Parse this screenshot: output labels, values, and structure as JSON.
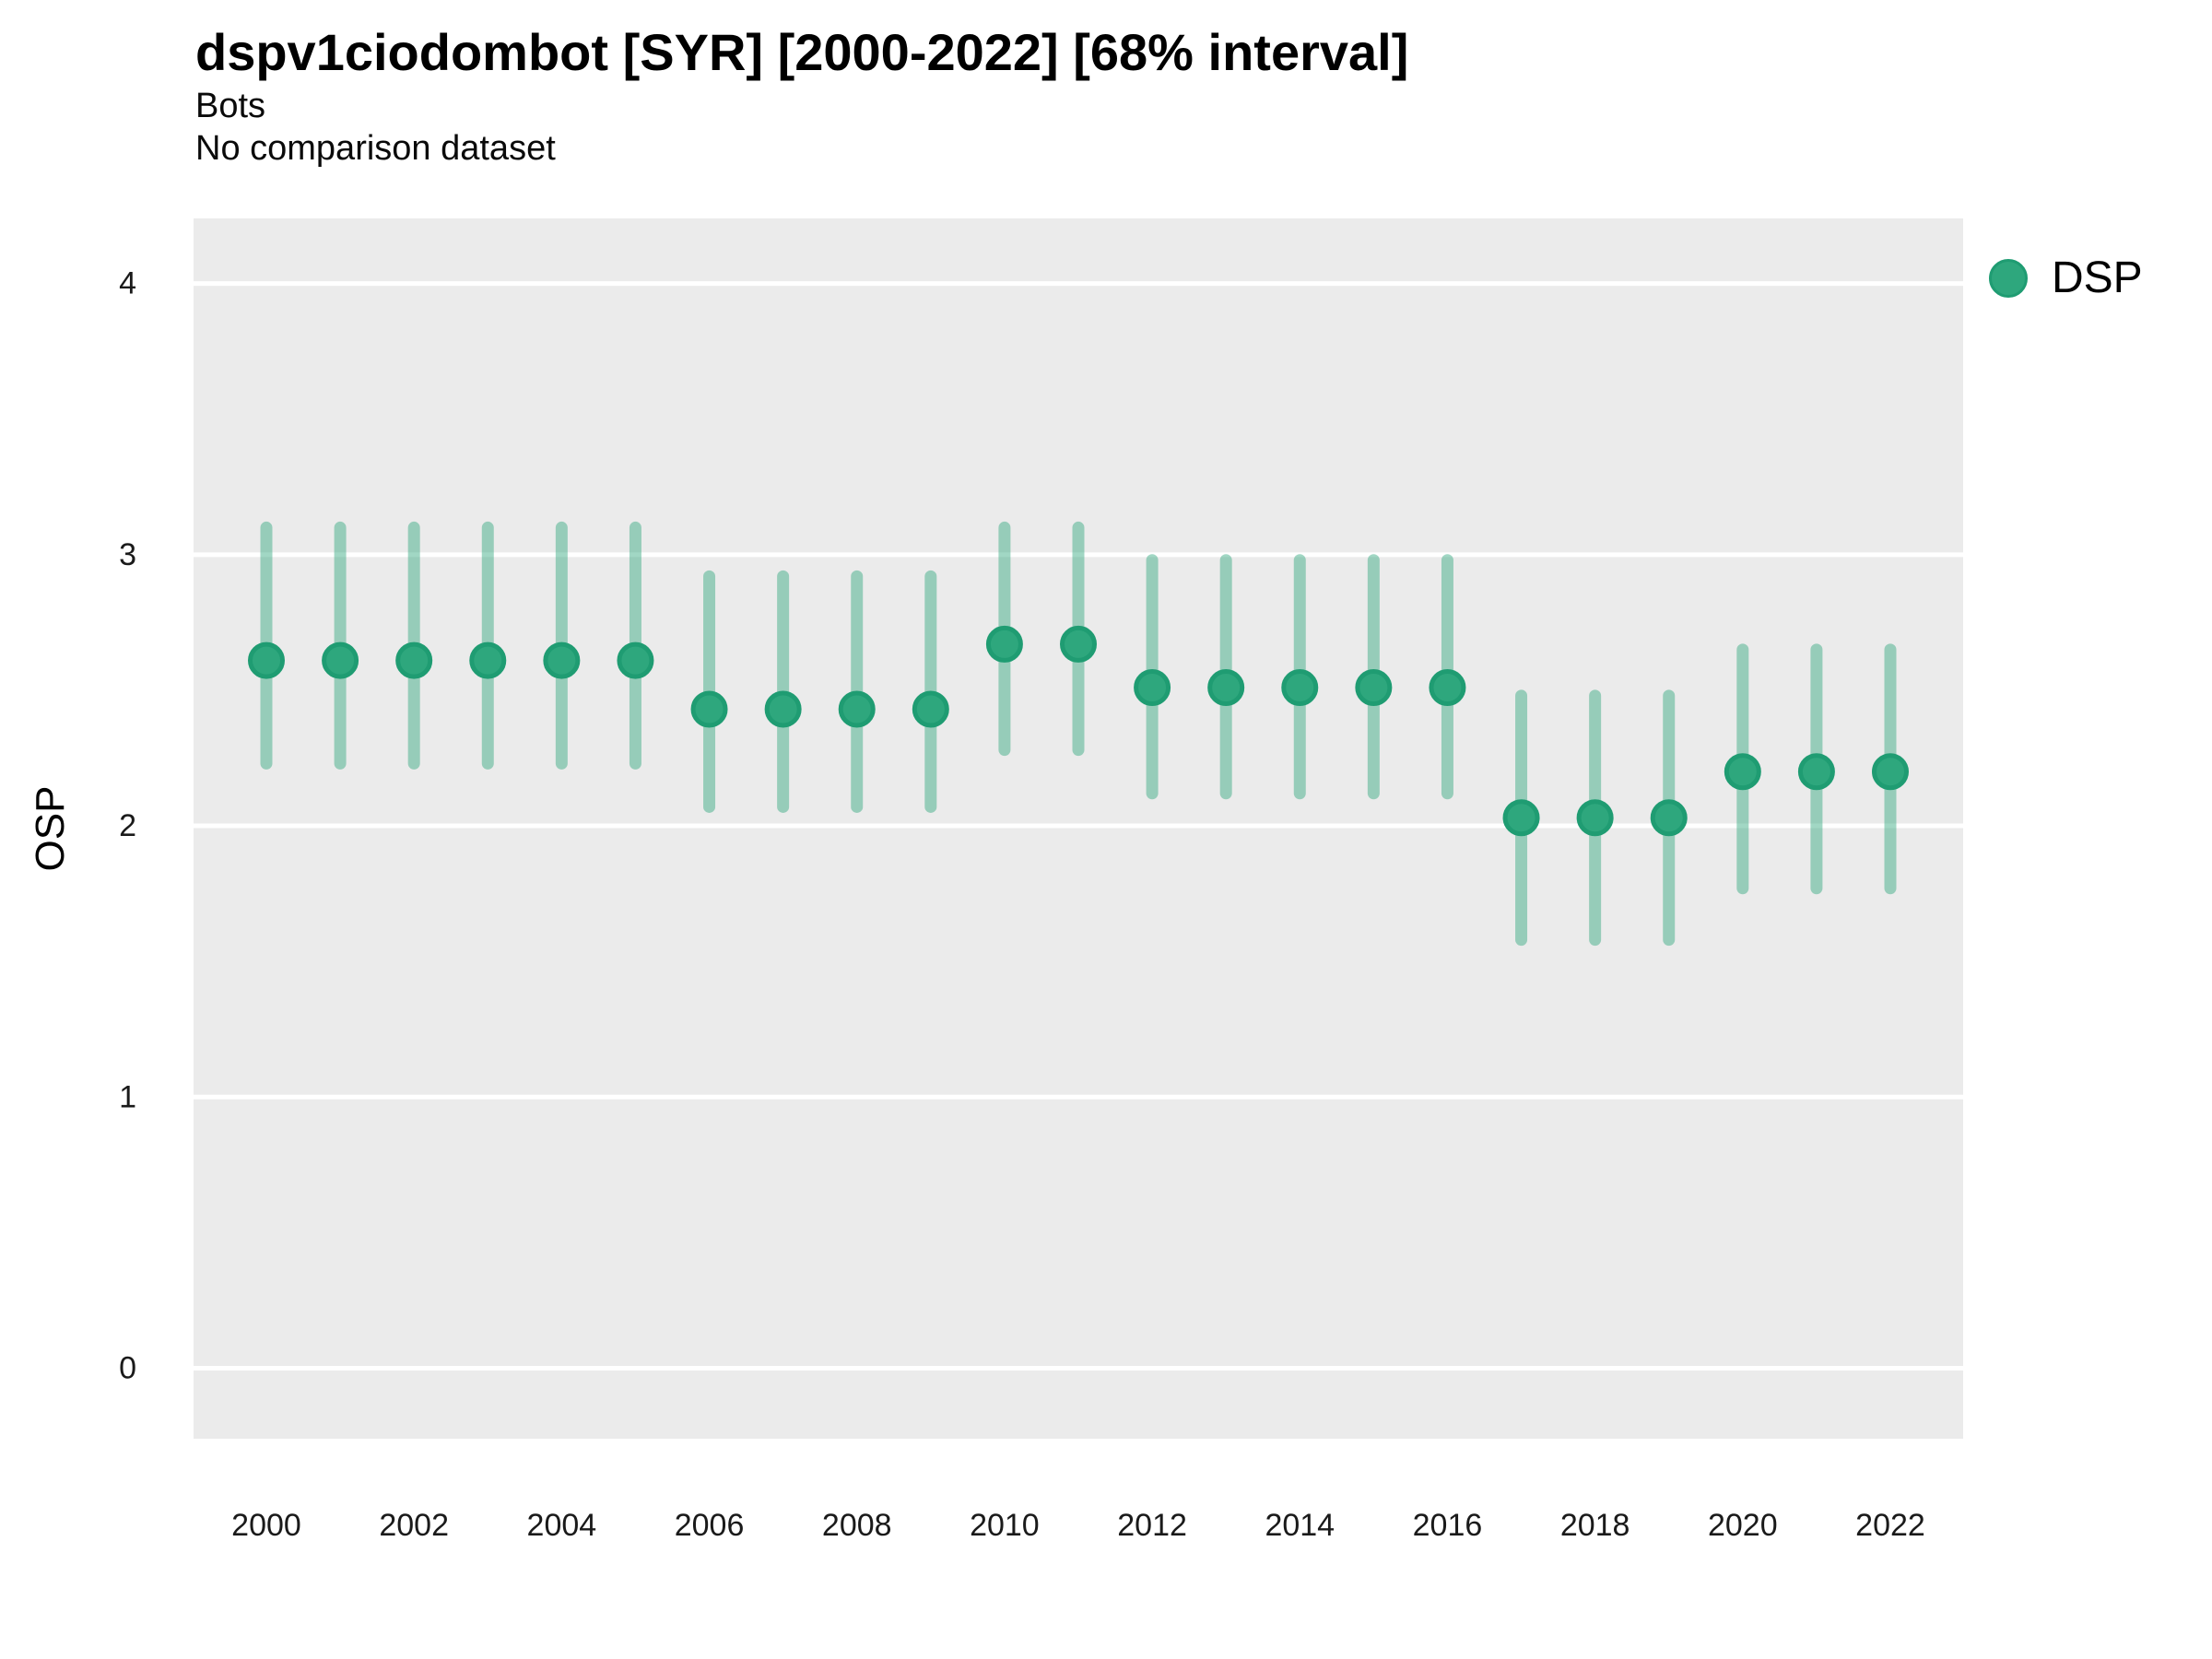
{
  "header": {
    "title": "dspv1ciodombot [SYR] [2000-2022] [68% interval]",
    "subtitle": "Bots",
    "note": "No comparison dataset"
  },
  "legend": {
    "label": "DSP",
    "color": "#2EA77D"
  },
  "chart_data": {
    "type": "scatter",
    "title": "dspv1ciodombot [SYR] [2000-2022] [68% interval]",
    "subtitle": "Bots",
    "note": "No comparison dataset",
    "xlabel": "",
    "ylabel": "OSP",
    "interval_label": "68% interval",
    "legend_position": "right",
    "grid": "major-horizontal-white",
    "panel_bg": "#EBEBEB",
    "gridline_color": "#FFFFFF",
    "point_color": "#2EA77D",
    "point_stroke_color": "#1F9C72",
    "interval_color": "#2FA77D",
    "interval_opacity": 0.45,
    "tick_label_color": "#1A1A1A",
    "ylim": [
      -0.26,
      4.24
    ],
    "yticks": [
      0,
      1,
      2,
      3,
      4
    ],
    "xticks": [
      2000,
      2002,
      2004,
      2006,
      2008,
      2010,
      2012,
      2014,
      2016,
      2018,
      2020,
      2022
    ],
    "series": [
      {
        "name": "DSP",
        "points": [
          {
            "year": 2000,
            "mid": 2.61,
            "lo": 2.23,
            "hi": 3.1
          },
          {
            "year": 2001,
            "mid": 2.61,
            "lo": 2.23,
            "hi": 3.1
          },
          {
            "year": 2002,
            "mid": 2.61,
            "lo": 2.23,
            "hi": 3.1
          },
          {
            "year": 2003,
            "mid": 2.61,
            "lo": 2.23,
            "hi": 3.1
          },
          {
            "year": 2004,
            "mid": 2.61,
            "lo": 2.23,
            "hi": 3.1
          },
          {
            "year": 2005,
            "mid": 2.61,
            "lo": 2.23,
            "hi": 3.1
          },
          {
            "year": 2006,
            "mid": 2.43,
            "lo": 2.07,
            "hi": 2.92
          },
          {
            "year": 2007,
            "mid": 2.43,
            "lo": 2.07,
            "hi": 2.92
          },
          {
            "year": 2008,
            "mid": 2.43,
            "lo": 2.07,
            "hi": 2.92
          },
          {
            "year": 2009,
            "mid": 2.43,
            "lo": 2.07,
            "hi": 2.92
          },
          {
            "year": 2010,
            "mid": 2.67,
            "lo": 2.28,
            "hi": 3.1
          },
          {
            "year": 2011,
            "mid": 2.67,
            "lo": 2.28,
            "hi": 3.1
          },
          {
            "year": 2012,
            "mid": 2.51,
            "lo": 2.12,
            "hi": 2.98
          },
          {
            "year": 2013,
            "mid": 2.51,
            "lo": 2.12,
            "hi": 2.98
          },
          {
            "year": 2014,
            "mid": 2.51,
            "lo": 2.12,
            "hi": 2.98
          },
          {
            "year": 2015,
            "mid": 2.51,
            "lo": 2.12,
            "hi": 2.98
          },
          {
            "year": 2016,
            "mid": 2.51,
            "lo": 2.12,
            "hi": 2.98
          },
          {
            "year": 2017,
            "mid": 2.03,
            "lo": 1.58,
            "hi": 2.48
          },
          {
            "year": 2018,
            "mid": 2.03,
            "lo": 1.58,
            "hi": 2.48
          },
          {
            "year": 2019,
            "mid": 2.03,
            "lo": 1.58,
            "hi": 2.48
          },
          {
            "year": 2020,
            "mid": 2.2,
            "lo": 1.77,
            "hi": 2.65
          },
          {
            "year": 2021,
            "mid": 2.2,
            "lo": 1.77,
            "hi": 2.65
          },
          {
            "year": 2022,
            "mid": 2.2,
            "lo": 1.77,
            "hi": 2.65
          }
        ]
      }
    ]
  }
}
